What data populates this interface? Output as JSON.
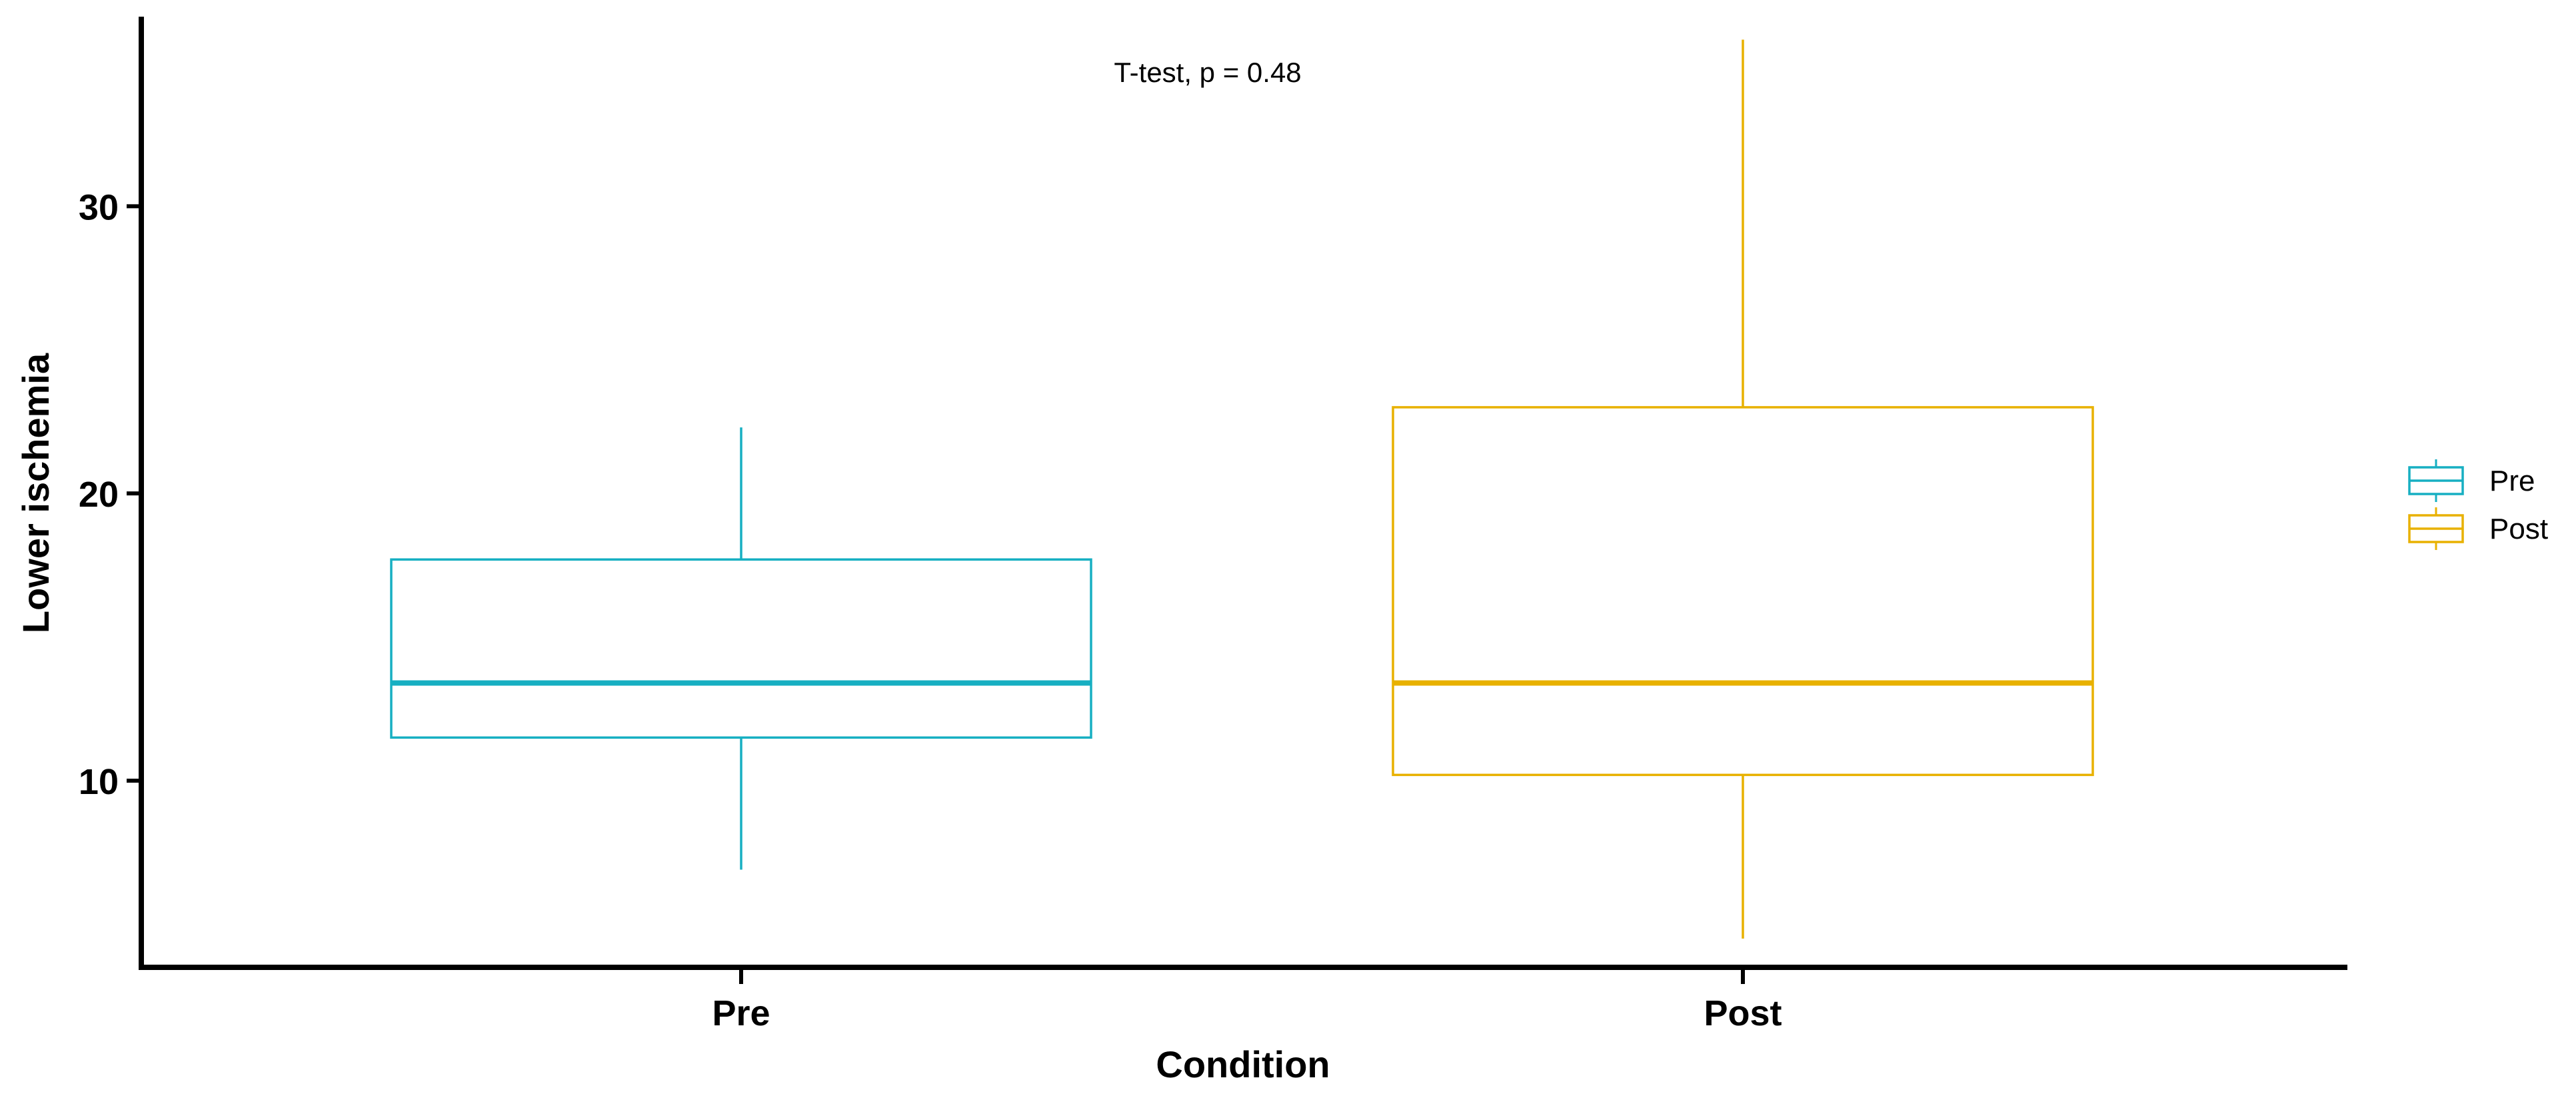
{
  "chart_data": {
    "type": "box",
    "title": "",
    "xlabel": "Condition",
    "ylabel": "Lower ischemia",
    "categories": [
      "Pre",
      "Post"
    ],
    "ylim": [
      3.5,
      36.6
    ],
    "yticks": [
      10,
      20,
      30
    ],
    "annotation": "T-test, p = 0.48",
    "legend": {
      "position": "right",
      "entries": [
        "Pre",
        "Post"
      ]
    },
    "grid": false,
    "series": [
      {
        "name": "Pre",
        "color": "#17AFC2",
        "whisker_low": 6.9,
        "q1": 11.5,
        "median": 13.4,
        "q3": 17.7,
        "whisker_high": 22.3
      },
      {
        "name": "Post",
        "color": "#E8B100",
        "whisker_low": 4.5,
        "q1": 10.2,
        "median": 13.4,
        "q3": 23.0,
        "whisker_high": 35.8
      }
    ]
  }
}
